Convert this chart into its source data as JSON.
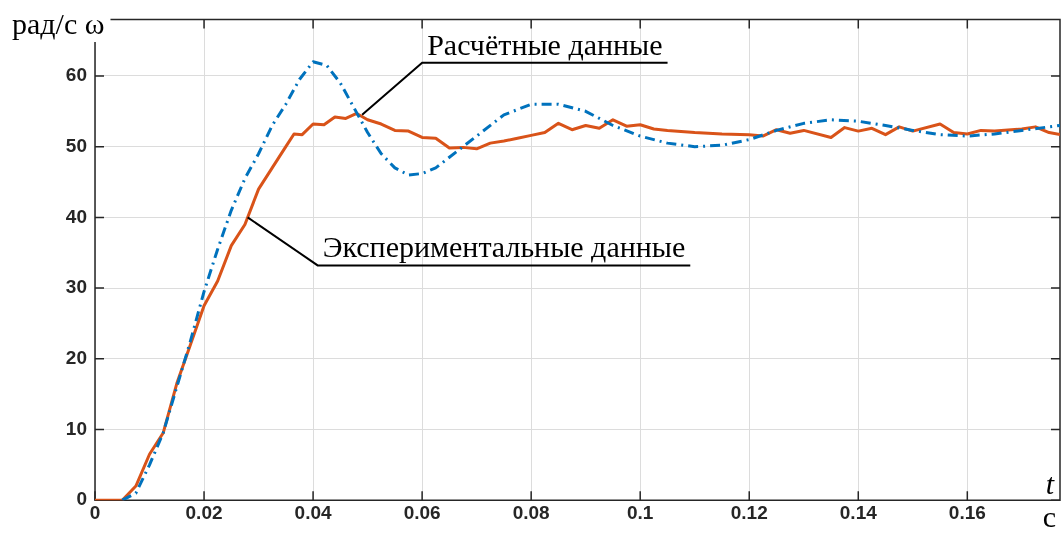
{
  "chart_data": {
    "type": "line",
    "ylabel": "рад/с ω",
    "xlabel": "t",
    "x2label": "с",
    "xlim": [
      0,
      0.177
    ],
    "xticks": [
      0,
      0.02,
      0.04,
      0.06,
      0.08,
      {
        "value": 0.1,
        "label": "0.1"
      },
      0.12,
      0.14,
      0.16
    ],
    "ylim": [
      0,
      68
    ],
    "yticks": [
      0,
      10,
      20,
      30,
      40,
      50,
      60
    ],
    "grid": true,
    "legend": false,
    "marker": "none",
    "series": [
      {
        "color": "#0072bd",
        "line_style": "dashdot",
        "x": [
          0.005,
          0.0075,
          0.01,
          0.0125,
          0.015,
          0.0175,
          0.02,
          0.0225,
          0.025,
          0.0275,
          0.03,
          0.0325,
          0.035,
          0.0375,
          0.04,
          0.0425,
          0.045,
          0.0475,
          0.05,
          0.0525,
          0.055,
          0.0575,
          0.06,
          0.0625,
          0.065,
          0.07,
          0.075,
          0.08,
          0.085,
          0.09,
          0.095,
          0.1,
          0.105,
          0.11,
          0.115,
          0.12,
          0.125,
          0.13,
          0.135,
          0.14,
          0.145,
          0.15,
          0.155,
          0.16,
          0.165,
          0.17,
          0.177
        ],
        "values": [
          0,
          1,
          5,
          9.5,
          16,
          22.5,
          29.5,
          35.5,
          41,
          45.5,
          49,
          53,
          56,
          59.5,
          62,
          61.5,
          59,
          55.5,
          52,
          49,
          47,
          46,
          46.2,
          47,
          48.5,
          51.5,
          54.5,
          56,
          56,
          55,
          53,
          51.5,
          50.5,
          50,
          50.2,
          51,
          52.3,
          53.3,
          53.8,
          53.6,
          53,
          52.3,
          51.7,
          51.5,
          51.8,
          52.3,
          53
        ]
      },
      {
        "color": "#d95319",
        "line_style": "solid",
        "x": [
          0,
          0.005,
          0.0075,
          0.01,
          0.0125,
          0.015,
          0.0175,
          0.02,
          0.0225,
          0.025,
          0.0275,
          0.03,
          0.0325,
          0.035,
          0.0365,
          0.038,
          0.04,
          0.042,
          0.044,
          0.046,
          0.048,
          0.05,
          0.0525,
          0.055,
          0.0575,
          0.06,
          0.0625,
          0.065,
          0.0675,
          0.07,
          0.0725,
          0.075,
          0.0775,
          0.08,
          0.0825,
          0.085,
          0.0875,
          0.09,
          0.0925,
          0.095,
          0.0975,
          0.1,
          0.1025,
          0.105,
          0.11,
          0.115,
          0.12,
          0.1225,
          0.125,
          0.1275,
          0.13,
          0.135,
          0.1375,
          0.14,
          0.1425,
          0.145,
          0.1475,
          0.15,
          0.155,
          0.1575,
          0.16,
          0.1625,
          0.165,
          0.17,
          0.1725,
          0.175,
          0.177
        ],
        "values": [
          0,
          0,
          2,
          6.5,
          9.5,
          16.5,
          22,
          27.5,
          31,
          36,
          39,
          44,
          47,
          50,
          51.8,
          51.7,
          53.2,
          53.1,
          54.2,
          54,
          54.7,
          53.8,
          53.2,
          52.3,
          52.2,
          51.3,
          51.2,
          49.8,
          49.9,
          49.7,
          50.5,
          50.8,
          51.2,
          51.6,
          52,
          53.3,
          52.4,
          53,
          52.6,
          53.8,
          52.9,
          53.1,
          52.5,
          52.3,
          52,
          51.8,
          51.7,
          51.5,
          52.4,
          51.9,
          52.3,
          51.3,
          52.7,
          52.2,
          52.6,
          51.7,
          52.8,
          52.2,
          53.2,
          52,
          51.8,
          52.3,
          52.2,
          52.5,
          52.8,
          52,
          51.7
        ]
      }
    ],
    "annotations": [
      {
        "text": "Расчётные данные",
        "x": 0.049,
        "y": 54.5
      },
      {
        "text": "Экспериментальные данные",
        "x": 0.028,
        "y": 40
      }
    ]
  }
}
